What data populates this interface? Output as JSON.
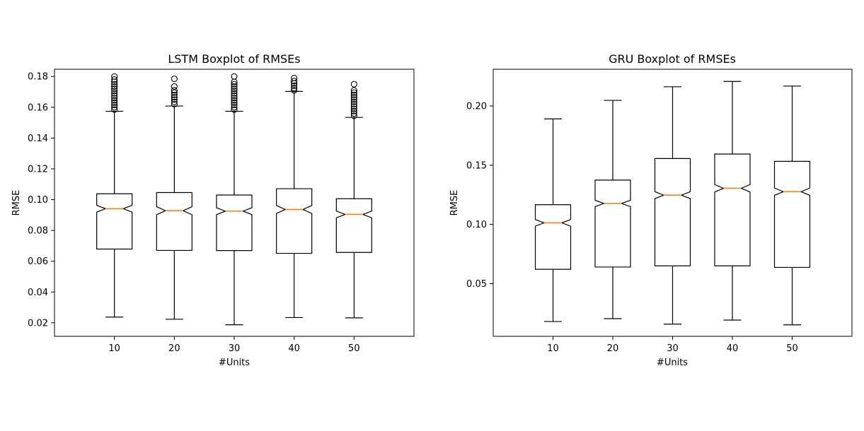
{
  "chart_data": [
    {
      "type": "boxplot",
      "title": "LSTM Boxplot of RMSEs",
      "xlabel": "#Units",
      "ylabel": "RMSE",
      "ylim": [
        0.0112,
        0.1847
      ],
      "yticks": [
        0.02,
        0.04,
        0.06,
        0.08,
        0.1,
        0.12,
        0.14,
        0.16,
        0.18
      ],
      "ytick_labels": [
        "0.02",
        "0.04",
        "0.06",
        "0.08",
        "0.10",
        "0.12",
        "0.14",
        "0.16",
        "0.18"
      ],
      "categories": [
        "10",
        "20",
        "30",
        "40",
        "50"
      ],
      "boxes": [
        {
          "label": "10",
          "whisker_low": 0.0237,
          "q1": 0.0679,
          "median": 0.0941,
          "q3": 0.1038,
          "whisker_high": 0.1574,
          "notch_low": 0.0919,
          "notch_high": 0.0963,
          "outliers": [
            0.1585,
            0.16,
            0.1615,
            0.163,
            0.1645,
            0.166,
            0.1675,
            0.169,
            0.1705,
            0.172,
            0.1735,
            0.175,
            0.1765,
            0.178,
            0.18
          ]
        },
        {
          "label": "20",
          "whisker_low": 0.0223,
          "q1": 0.067,
          "median": 0.0928,
          "q3": 0.1046,
          "whisker_high": 0.1608,
          "notch_low": 0.0902,
          "notch_high": 0.0954,
          "outliers": [
            0.162,
            0.1635,
            0.165,
            0.1665,
            0.168,
            0.1695,
            0.171,
            0.1735,
            0.1785
          ]
        },
        {
          "label": "30",
          "whisker_low": 0.0187,
          "q1": 0.0669,
          "median": 0.0925,
          "q3": 0.103,
          "whisker_high": 0.1574,
          "notch_low": 0.0903,
          "notch_high": 0.0947,
          "outliers": [
            0.1585,
            0.16,
            0.1615,
            0.163,
            0.1645,
            0.166,
            0.1675,
            0.169,
            0.1705,
            0.172,
            0.1735,
            0.175,
            0.1765,
            0.18
          ]
        },
        {
          "label": "40",
          "whisker_low": 0.0234,
          "q1": 0.0651,
          "median": 0.0936,
          "q3": 0.1071,
          "whisker_high": 0.1703,
          "notch_low": 0.091,
          "notch_high": 0.0962,
          "outliers": [
            0.171,
            0.1725,
            0.174,
            0.1755,
            0.177,
            0.179
          ]
        },
        {
          "label": "50",
          "whisker_low": 0.0232,
          "q1": 0.0657,
          "median": 0.0904,
          "q3": 0.1006,
          "whisker_high": 0.1534,
          "notch_low": 0.0882,
          "notch_high": 0.0926,
          "outliers": [
            0.1545,
            0.156,
            0.1575,
            0.159,
            0.1605,
            0.162,
            0.1635,
            0.165,
            0.1665,
            0.168,
            0.1695,
            0.171,
            0.175
          ]
        }
      ]
    },
    {
      "type": "boxplot",
      "title": "GRU Boxplot of RMSEs",
      "xlabel": "#Units",
      "ylabel": "RMSE",
      "ylim": [
        0.0055,
        0.231
      ],
      "yticks": [
        0.05,
        0.1,
        0.15,
        0.2
      ],
      "ytick_labels": [
        "0.05",
        "0.10",
        "0.15",
        "0.20"
      ],
      "categories": [
        "10",
        "20",
        "30",
        "40",
        "50"
      ],
      "boxes": [
        {
          "label": "10",
          "whisker_low": 0.018,
          "q1": 0.0621,
          "median": 0.1013,
          "q3": 0.1166,
          "whisker_high": 0.1891,
          "notch_low": 0.0985,
          "notch_high": 0.1041,
          "outliers": []
        },
        {
          "label": "20",
          "whisker_low": 0.0204,
          "q1": 0.064,
          "median": 0.1177,
          "q3": 0.1374,
          "whisker_high": 0.2047,
          "notch_low": 0.115,
          "notch_high": 0.1204,
          "outliers": []
        },
        {
          "label": "30",
          "whisker_low": 0.0158,
          "q1": 0.065,
          "median": 0.1247,
          "q3": 0.1556,
          "whisker_high": 0.2162,
          "notch_low": 0.1218,
          "notch_high": 0.1276,
          "outliers": []
        },
        {
          "label": "40",
          "whisker_low": 0.0192,
          "q1": 0.065,
          "median": 0.1305,
          "q3": 0.1594,
          "whisker_high": 0.2207,
          "notch_low": 0.1274,
          "notch_high": 0.1336,
          "outliers": []
        },
        {
          "label": "50",
          "whisker_low": 0.0152,
          "q1": 0.0637,
          "median": 0.1276,
          "q3": 0.1532,
          "whisker_high": 0.2168,
          "notch_low": 0.1245,
          "notch_high": 0.1307,
          "outliers": []
        }
      ]
    }
  ],
  "colors": {
    "box": "#000000",
    "median": "#ff7f0e",
    "background": "#ffffff"
  }
}
